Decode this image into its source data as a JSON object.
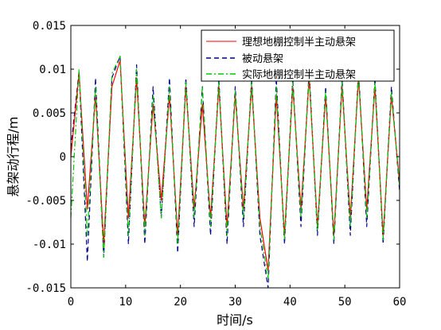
{
  "chart_data": {
    "type": "line",
    "title": "",
    "xlabel": "时间/s",
    "ylabel": "悬架动行程/m",
    "xlim": [
      0,
      60
    ],
    "ylim": [
      -0.015,
      0.015
    ],
    "x_ticks": [
      0,
      10,
      20,
      30,
      40,
      50,
      60
    ],
    "x_tick_labels": [
      "0",
      "10",
      "20",
      "30",
      "40",
      "50",
      "60"
    ],
    "y_ticks": [
      -0.015,
      -0.01,
      -0.005,
      0,
      0.005,
      0.01,
      0.015
    ],
    "y_tick_labels": [
      "-0.015",
      "-0.01",
      "-0.005",
      "0",
      "0.005",
      "0.01",
      "0.015"
    ],
    "grid": false,
    "legend_position": "top-right",
    "series": [
      {
        "name": "理想地棚控制半主动悬架",
        "color": "#ff0000",
        "style": "solid",
        "x": [
          0,
          1.5,
          3,
          4.5,
          6,
          7.5,
          9,
          10.5,
          12,
          13.5,
          15,
          16.5,
          18,
          19.5,
          21,
          22.5,
          24,
          25.5,
          27,
          28.5,
          30,
          31.5,
          33,
          34.5,
          36,
          37.5,
          39,
          40.5,
          42,
          43.5,
          45,
          46.5,
          48,
          49.5,
          51,
          52.5,
          54,
          55.5,
          57,
          58.5,
          60
        ],
        "y": [
          0,
          0.0095,
          -0.006,
          0.007,
          -0.01,
          0.008,
          0.011,
          -0.007,
          0.009,
          -0.008,
          0.006,
          -0.005,
          0.007,
          -0.009,
          0.008,
          -0.006,
          0.006,
          -0.007,
          0.008,
          -0.008,
          0.007,
          -0.006,
          0.008,
          -0.007,
          -0.013,
          0.007,
          -0.009,
          0.008,
          -0.006,
          0.009,
          -0.008,
          0.007,
          -0.009,
          0.008,
          -0.007,
          0.009,
          -0.006,
          0.008,
          -0.009,
          0.007,
          -0.003
        ]
      },
      {
        "name": "被动悬架",
        "color": "#00008b",
        "style": "dashed",
        "x": [
          0,
          1.5,
          3,
          4.5,
          6,
          7.5,
          9,
          10.5,
          12,
          13.5,
          15,
          16.5,
          18,
          19.5,
          21,
          22.5,
          24,
          25.5,
          27,
          28.5,
          30,
          31.5,
          33,
          34.5,
          36,
          37.5,
          39,
          40.5,
          42,
          43.5,
          45,
          46.5,
          48,
          49.5,
          51,
          52.5,
          54,
          55.5,
          57,
          58.5,
          60
        ],
        "y": [
          0.001,
          0.0098,
          -0.012,
          0.009,
          -0.0115,
          0.009,
          0.0115,
          -0.01,
          0.0105,
          -0.01,
          0.008,
          -0.007,
          0.009,
          -0.011,
          0.009,
          -0.008,
          0.008,
          -0.009,
          0.009,
          -0.01,
          0.008,
          -0.008,
          0.009,
          -0.009,
          -0.015,
          0.009,
          -0.01,
          0.009,
          -0.008,
          0.01,
          -0.009,
          0.008,
          -0.01,
          0.009,
          -0.009,
          0.01,
          -0.008,
          0.009,
          -0.01,
          0.008,
          -0.004
        ]
      },
      {
        "name": "实际地棚控制半主动悬架",
        "color": "#00cc00",
        "style": "dash-dot",
        "x": [
          0,
          1.5,
          3,
          4.5,
          6,
          7.5,
          9,
          10.5,
          12,
          13.5,
          15,
          16.5,
          18,
          19.5,
          21,
          22.5,
          24,
          25.5,
          27,
          28.5,
          30,
          31.5,
          33,
          34.5,
          36,
          37.5,
          39,
          40.5,
          42,
          43.5,
          45,
          46.5,
          48,
          49.5,
          51,
          52.5,
          54,
          55.5,
          57,
          58.5,
          60
        ],
        "y": [
          -0.007,
          0.01,
          -0.009,
          0.008,
          -0.0115,
          0.0095,
          0.0115,
          -0.009,
          0.01,
          -0.009,
          0.007,
          -0.007,
          0.008,
          -0.01,
          0.0085,
          -0.007,
          0.008,
          -0.008,
          0.0085,
          -0.009,
          0.0075,
          -0.007,
          0.0085,
          -0.008,
          -0.014,
          0.008,
          -0.0095,
          0.0085,
          -0.007,
          0.0095,
          -0.0085,
          0.0075,
          -0.0095,
          0.0085,
          -0.008,
          0.0095,
          -0.007,
          0.0085,
          -0.0095,
          0.0075,
          -0.0035
        ]
      }
    ]
  }
}
